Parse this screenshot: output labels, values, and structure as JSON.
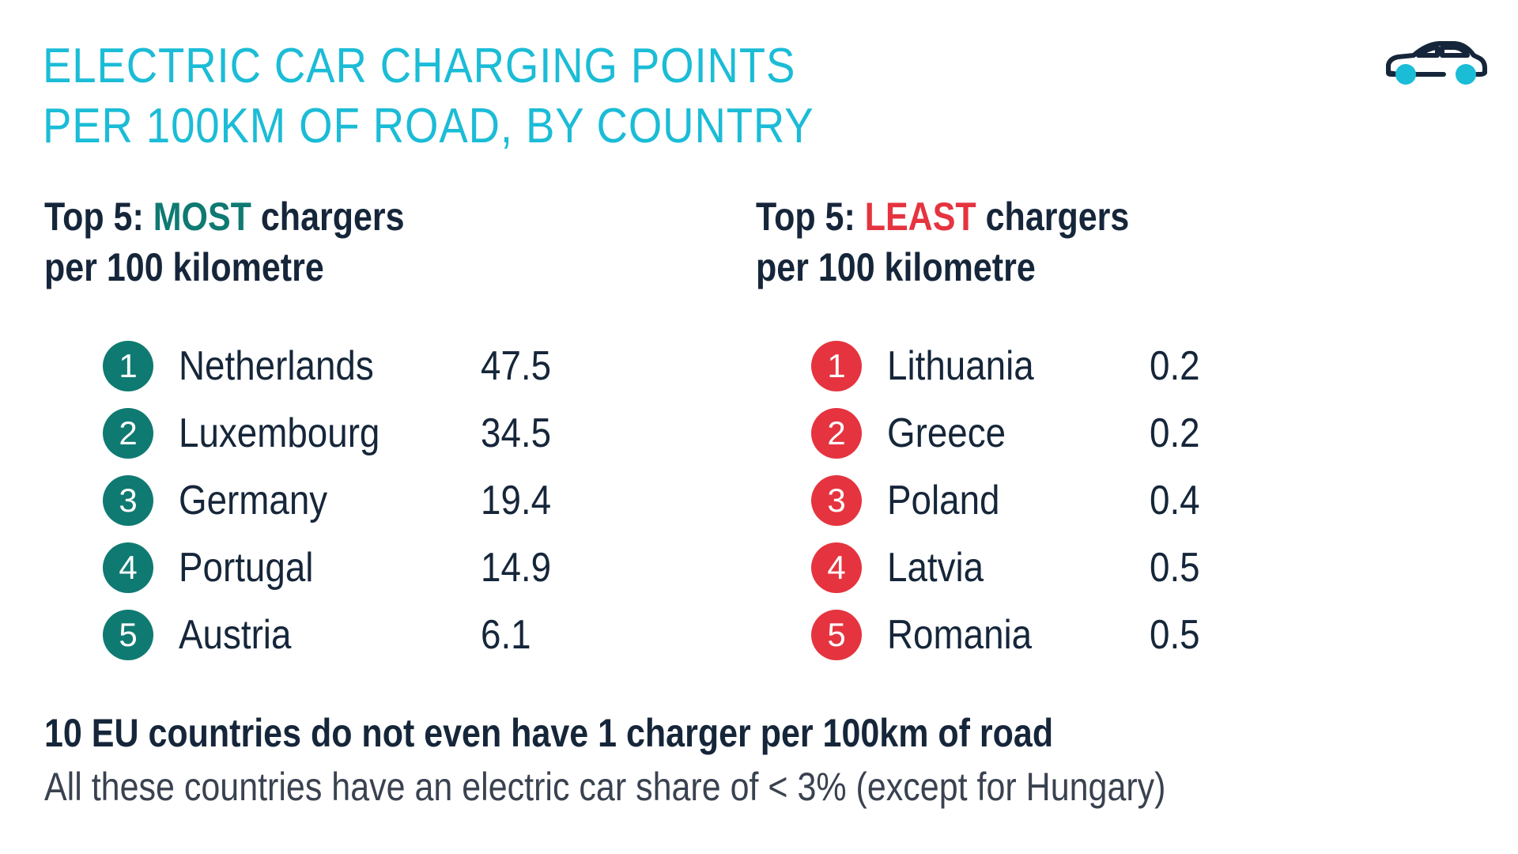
{
  "colors": {
    "title": "#1bbcd6",
    "text": "#16263a",
    "most_accent": "#0f7a72",
    "least_accent": "#e5343f",
    "note_text": "#3a4250",
    "car_outline": "#16263a",
    "car_wheels": "#1bbcd6"
  },
  "title": {
    "line1": "ELECTRIC CAR CHARGING POINTS",
    "line2": "PER 100KM OF ROAD, BY COUNTRY"
  },
  "header_icon": "car-icon",
  "most": {
    "prefix": "Top 5: ",
    "highlight": "MOST",
    "suffix": " chargers",
    "line2": "per 100 kilometre",
    "items": [
      {
        "rank": "1",
        "country": "Netherlands",
        "value": "47.5"
      },
      {
        "rank": "2",
        "country": "Luxembourg",
        "value": "34.5"
      },
      {
        "rank": "3",
        "country": "Germany",
        "value": "19.4"
      },
      {
        "rank": "4",
        "country": "Portugal",
        "value": "14.9"
      },
      {
        "rank": "5",
        "country": "Austria",
        "value": "6.1"
      }
    ]
  },
  "least": {
    "prefix": "Top 5: ",
    "highlight": "LEAST",
    "suffix": " chargers",
    "line2": "per 100 kilometre",
    "items": [
      {
        "rank": "1",
        "country": "Lithuania",
        "value": "0.2"
      },
      {
        "rank": "2",
        "country": "Greece",
        "value": "0.2"
      },
      {
        "rank": "3",
        "country": "Poland",
        "value": "0.4"
      },
      {
        "rank": "4",
        "country": "Latvia",
        "value": "0.5"
      },
      {
        "rank": "5",
        "country": "Romania",
        "value": "0.5"
      }
    ]
  },
  "footer": {
    "headline": "10 EU countries do not even have 1 charger per 100km of road",
    "note": "All these countries have an electric car share of < 3% (except for Hungary)"
  }
}
